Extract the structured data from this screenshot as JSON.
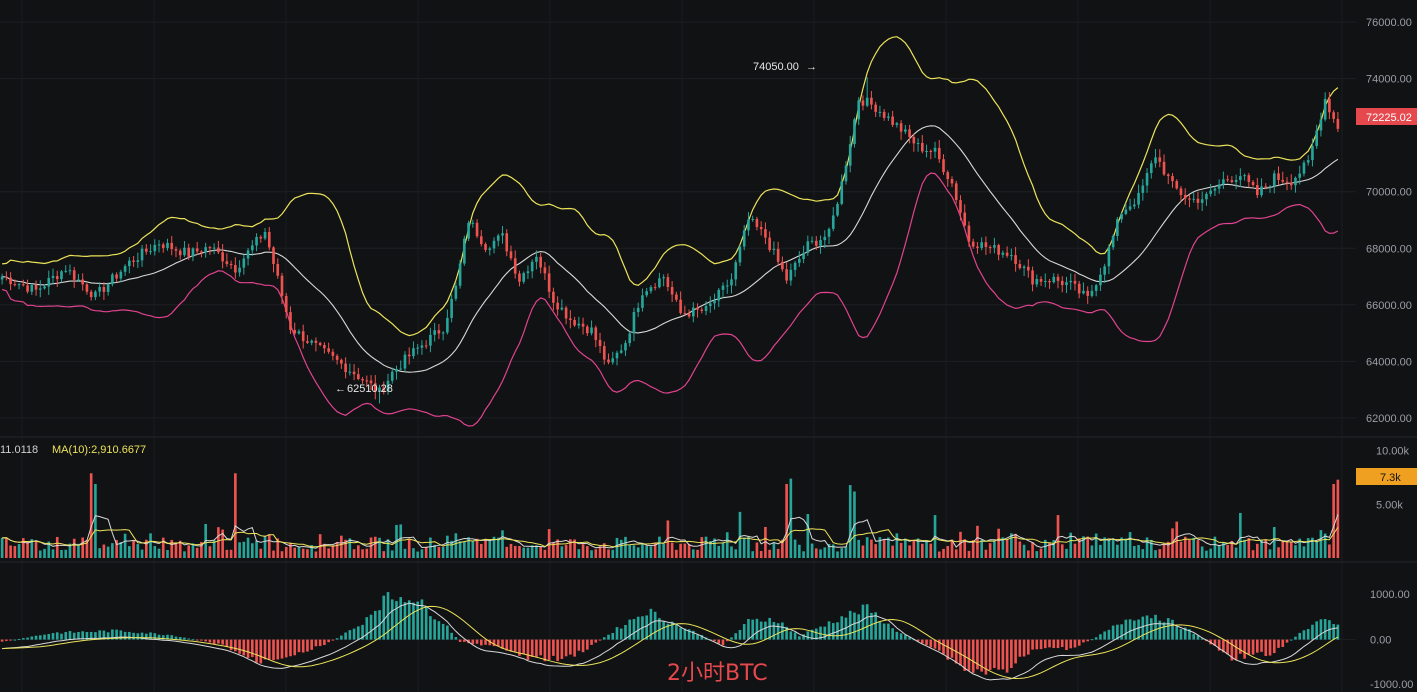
{
  "chart_data": {
    "type": "candlestick",
    "title": "2小时BTC",
    "colors": {
      "up": "#26a69a",
      "down": "#ef5350",
      "bb_upper": "#ece35a",
      "bb_mid": "#d8d8d8",
      "bb_lower": "#e0438f",
      "price_tag": "#e5484d",
      "vol_tag": "#f0a020"
    },
    "price_axis": {
      "ticks": [
        "76000.00",
        "74000.00",
        "72225.02",
        "70000.00",
        "68000.00",
        "66000.00",
        "64000.00",
        "62000.00"
      ],
      "tick_values": [
        76000,
        74000,
        70000,
        68000,
        66000,
        64000,
        62000
      ],
      "ylim": [
        61500,
        76500
      ]
    },
    "last_price": "72225.02",
    "last_price_value": 72225.02,
    "high_label": "74050.00",
    "high_value": 74050,
    "low_label": "62510.28",
    "low_value": 62510.28,
    "close_path": [
      [
        0,
        67000
      ],
      [
        8,
        66500
      ],
      [
        15,
        67300
      ],
      [
        22,
        66300
      ],
      [
        30,
        67500
      ],
      [
        37,
        68200
      ],
      [
        44,
        67800
      ],
      [
        49,
        68050
      ],
      [
        55,
        67300
      ],
      [
        62,
        68600
      ],
      [
        68,
        65200
      ],
      [
        75,
        64400
      ],
      [
        83,
        63600
      ],
      [
        89,
        62900
      ],
      [
        92,
        63600
      ],
      [
        96,
        64200
      ],
      [
        100,
        64700
      ],
      [
        104,
        65200
      ],
      [
        107,
        66600
      ],
      [
        110,
        69000
      ],
      [
        114,
        68100
      ],
      [
        118,
        68400
      ],
      [
        122,
        66900
      ],
      [
        126,
        67800
      ],
      [
        130,
        66200
      ],
      [
        134,
        65500
      ],
      [
        139,
        65100
      ],
      [
        143,
        63800
      ],
      [
        147,
        64700
      ],
      [
        151,
        66500
      ],
      [
        156,
        67000
      ],
      [
        160,
        65700
      ],
      [
        166,
        65800
      ],
      [
        172,
        66900
      ],
      [
        176,
        69000
      ],
      [
        180,
        68400
      ],
      [
        185,
        66900
      ],
      [
        190,
        68100
      ],
      [
        195,
        68500
      ],
      [
        198,
        70300
      ],
      [
        202,
        73300
      ],
      [
        206,
        73000
      ],
      [
        212,
        72200
      ],
      [
        216,
        71600
      ],
      [
        220,
        71400
      ],
      [
        224,
        70300
      ],
      [
        228,
        68300
      ],
      [
        233,
        68000
      ],
      [
        238,
        67800
      ],
      [
        243,
        66900
      ],
      [
        248,
        66900
      ],
      [
        252,
        66700
      ],
      [
        256,
        66200
      ],
      [
        260,
        67500
      ],
      [
        264,
        69300
      ],
      [
        268,
        69800
      ],
      [
        272,
        71300
      ],
      [
        276,
        70200
      ],
      [
        280,
        69700
      ],
      [
        284,
        69800
      ],
      [
        288,
        70400
      ],
      [
        292,
        70600
      ],
      [
        296,
        69900
      ],
      [
        300,
        70500
      ],
      [
        304,
        70400
      ],
      [
        308,
        71000
      ],
      [
        312,
        73300
      ],
      [
        315,
        72225
      ]
    ],
    "volume_axis": {
      "ticks": [
        "10.00k",
        "7.3k",
        "5.00k"
      ],
      "tick_values": [
        10000,
        5000
      ],
      "ymax": 11000
    },
    "volume_last": "7.3k",
    "volume_last_value": 7300,
    "volume_ma_label": "MA(10):2,910.6677",
    "volume_ma_prefix": "11.0118",
    "volume_baseline": 1000,
    "volume_spikes": [
      [
        21,
        7900
      ],
      [
        22,
        6900
      ],
      [
        55,
        7900
      ],
      [
        129,
        2700
      ],
      [
        157,
        3500
      ],
      [
        174,
        4300
      ],
      [
        185,
        6900
      ],
      [
        186,
        7400
      ],
      [
        190,
        4100
      ],
      [
        200,
        6800
      ],
      [
        201,
        6200
      ],
      [
        220,
        4000
      ],
      [
        230,
        3000
      ],
      [
        249,
        4000
      ],
      [
        292,
        4200
      ],
      [
        311,
        2600
      ],
      [
        314,
        6900
      ]
    ],
    "macd_axis": {
      "ticks": [
        "1000.00",
        "0.00",
        "-1000.00"
      ],
      "tick_values": [
        1000,
        0,
        -1000
      ],
      "ylim": [
        -1100,
        1300
      ]
    },
    "macd_hist_path": [
      [
        0,
        -50
      ],
      [
        12,
        150
      ],
      [
        28,
        200
      ],
      [
        40,
        100
      ],
      [
        52,
        -120
      ],
      [
        60,
        -500
      ],
      [
        70,
        -300
      ],
      [
        76,
        -120
      ],
      [
        84,
        300
      ],
      [
        90,
        900
      ],
      [
        96,
        1000
      ],
      [
        104,
        400
      ],
      [
        108,
        -50
      ],
      [
        116,
        -150
      ],
      [
        124,
        -400
      ],
      [
        132,
        -450
      ],
      [
        138,
        -200
      ],
      [
        146,
        300
      ],
      [
        152,
        650
      ],
      [
        160,
        300
      ],
      [
        166,
        50
      ],
      [
        170,
        -120
      ],
      [
        176,
        400
      ],
      [
        182,
        480
      ],
      [
        188,
        80
      ],
      [
        198,
        500
      ],
      [
        204,
        700
      ],
      [
        210,
        250
      ],
      [
        214,
        50
      ],
      [
        220,
        -200
      ],
      [
        228,
        -700
      ],
      [
        236,
        -700
      ],
      [
        244,
        -200
      ],
      [
        252,
        -200
      ],
      [
        258,
        50
      ],
      [
        266,
        500
      ],
      [
        272,
        550
      ],
      [
        280,
        200
      ],
      [
        290,
        -400
      ],
      [
        300,
        -300
      ],
      [
        306,
        150
      ],
      [
        312,
        450
      ],
      [
        315,
        380
      ]
    ]
  }
}
